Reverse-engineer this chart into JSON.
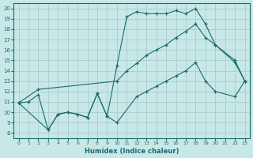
{
  "xlabel": "Humidex (Indice chaleur)",
  "xlim": [
    -0.5,
    23.5
  ],
  "ylim": [
    7.5,
    20.5
  ],
  "xticks": [
    0,
    1,
    2,
    3,
    4,
    5,
    6,
    7,
    8,
    9,
    10,
    11,
    12,
    13,
    14,
    15,
    16,
    17,
    18,
    19,
    20,
    21,
    22,
    23
  ],
  "yticks": [
    8,
    9,
    10,
    11,
    12,
    13,
    14,
    15,
    16,
    17,
    18,
    19,
    20
  ],
  "bg_color": "#c8e8e8",
  "line_color": "#1a6b6b",
  "grid_color": "#aacccc",
  "line1_x": [
    0,
    1,
    2,
    3,
    4,
    5,
    6,
    7,
    8,
    9,
    10,
    11,
    12,
    13,
    14,
    15,
    16,
    17,
    18,
    19,
    20,
    22,
    23
  ],
  "line1_y": [
    10.9,
    11.0,
    11.7,
    8.3,
    9.8,
    10.0,
    9.8,
    9.5,
    11.8,
    9.6,
    14.5,
    19.2,
    19.7,
    19.5,
    19.5,
    19.5,
    19.8,
    19.5,
    20.0,
    18.5,
    16.5,
    14.8,
    13.0
  ],
  "line2_x": [
    0,
    2,
    10,
    11,
    12,
    13,
    14,
    15,
    16,
    17,
    18,
    19,
    20,
    22,
    23
  ],
  "line2_y": [
    10.9,
    12.2,
    13.0,
    14.0,
    14.7,
    15.5,
    16.0,
    16.5,
    17.2,
    17.8,
    18.5,
    17.2,
    16.5,
    15.0,
    13.0
  ],
  "line3_x": [
    0,
    3,
    4,
    5,
    6,
    7,
    8,
    9,
    10,
    12,
    13,
    14,
    15,
    16,
    17,
    18,
    19,
    20,
    22,
    23
  ],
  "line3_y": [
    10.9,
    8.3,
    9.8,
    10.0,
    9.8,
    9.5,
    11.8,
    9.6,
    9.0,
    11.5,
    12.0,
    12.5,
    13.0,
    13.5,
    14.0,
    14.8,
    13.0,
    12.0,
    11.5,
    13.0
  ]
}
